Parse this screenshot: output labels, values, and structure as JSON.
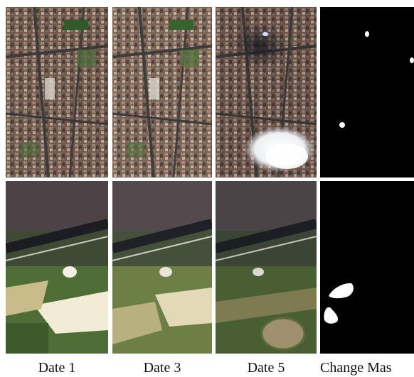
{
  "labels": {
    "col1": "Date 1",
    "col2": "Date 3",
    "col3": "Date 5",
    "col4": "Change Mas"
  },
  "colors": {
    "background": "#ffffff",
    "mask_background": "#000000",
    "mask_change": "#ffffff",
    "urban_tone": "#7a5f52",
    "field_green": "#4d6a34",
    "field_beige": "#e8ddc0"
  }
}
